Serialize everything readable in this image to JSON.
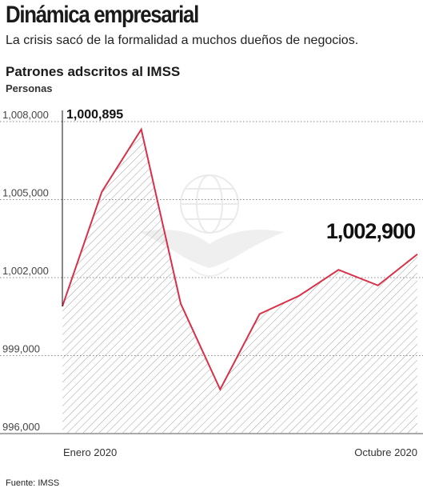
{
  "header": {
    "title": "Dinámica empresarial",
    "subtitle": "La crisis sacó de la formalidad a muchos dueños de negocios."
  },
  "chart_data": {
    "type": "area",
    "title": "Patrones adscritos al IMSS",
    "ylabel": "Personas",
    "xlabel": "",
    "ylim": [
      996000,
      1008000
    ],
    "yticks": [
      996000,
      999000,
      1002000,
      1005000,
      1008000
    ],
    "ytick_labels": [
      "996,000",
      "999,000",
      "1,002,000",
      "1,005,000",
      "1,008,000"
    ],
    "x_labels": [
      "Enero 2020",
      "Octubre 2020"
    ],
    "values": [
      1000895,
      1005300,
      1007700,
      1001000,
      997700,
      1000600,
      1001300,
      1002300,
      1001700,
      1002900
    ],
    "annotations": [
      {
        "label": "1,000,895",
        "point_index": 0
      },
      {
        "label": "1,002,900",
        "point_index": 9
      }
    ],
    "grid": true,
    "colors": {
      "line": "#d9304a",
      "hatch": "#9a9a9a",
      "grid": "#8a8a8a"
    }
  },
  "source": "Fuente: IMSS"
}
